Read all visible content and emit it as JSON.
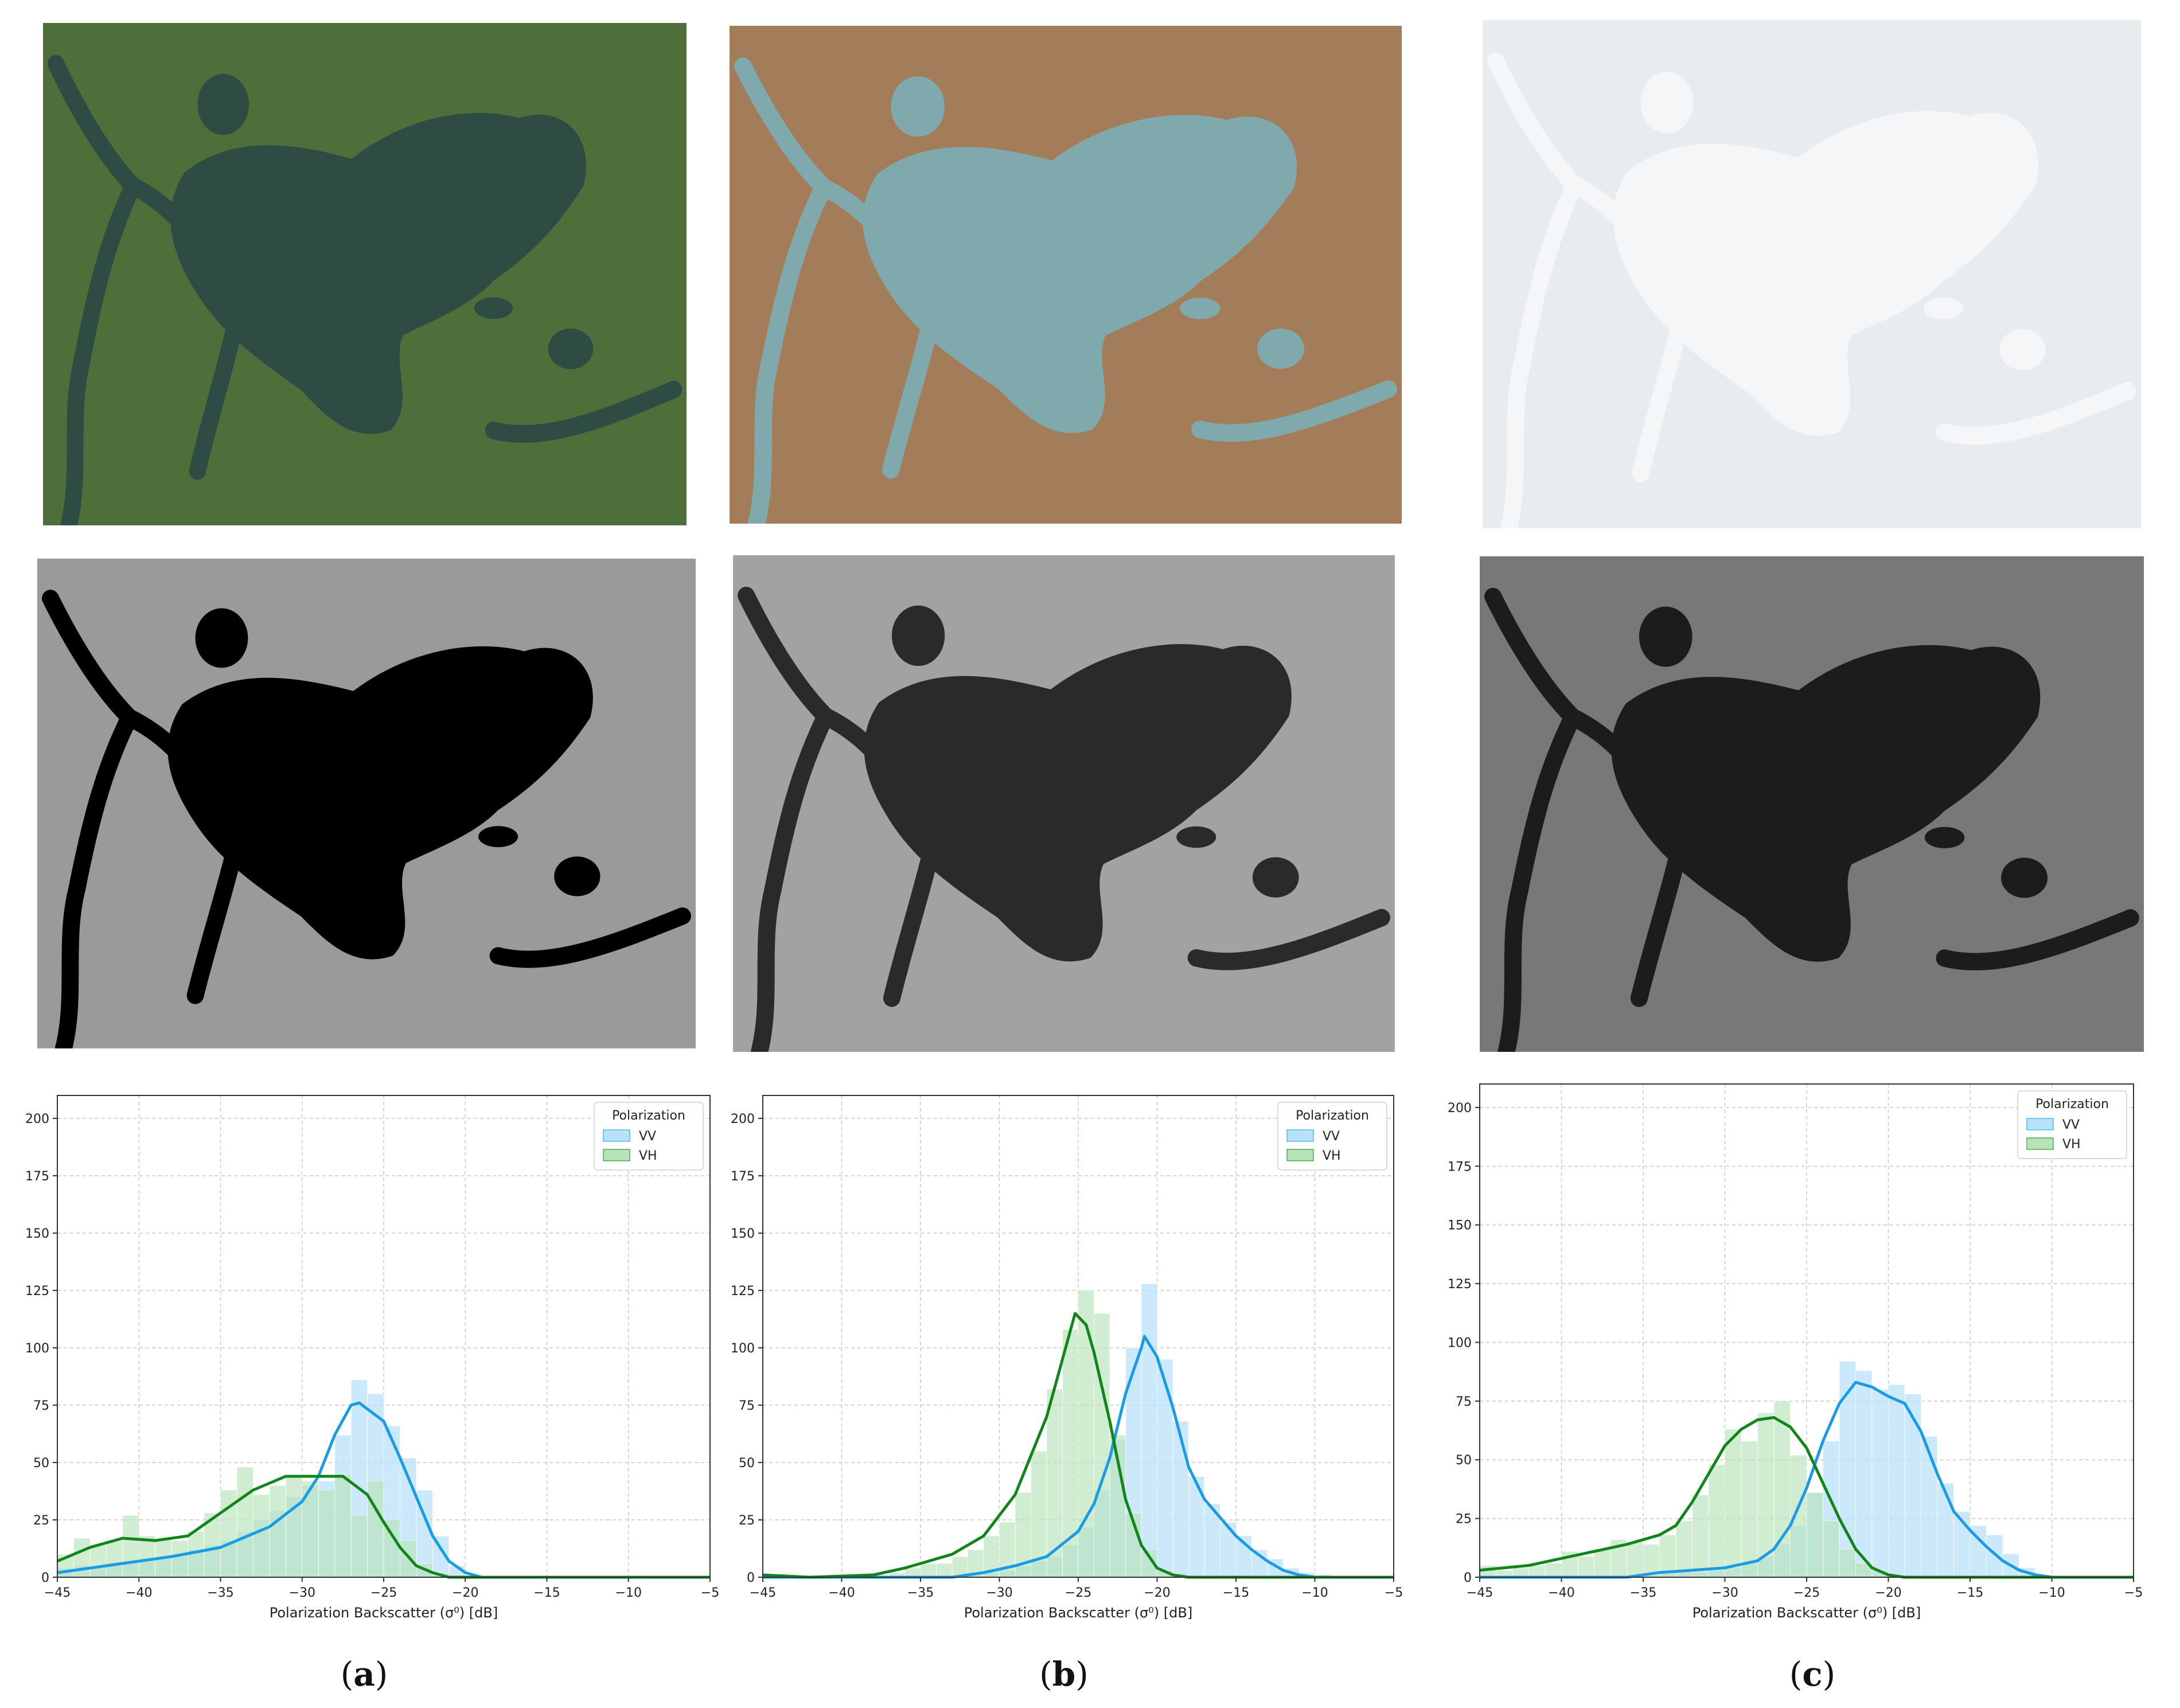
{
  "captions": [
    {
      "open": "(",
      "letter": "a",
      "close": ")"
    },
    {
      "open": "(",
      "letter": "b",
      "close": ")"
    },
    {
      "open": "(",
      "letter": "c",
      "close": ")"
    }
  ],
  "images": {
    "optical": [
      {
        "scene": "summer",
        "land": "#4f6f3a",
        "water": "#2e4c43"
      },
      {
        "scene": "autumn",
        "land": "#a37d5a",
        "water": "#7fa9ad"
      },
      {
        "scene": "winter-snow",
        "land": "#e8ecef",
        "water": "#f4f6f8"
      }
    ],
    "sar": [
      {
        "scene": "open-water",
        "land": "#9a9a9a",
        "water": "#000000"
      },
      {
        "scene": "thin-ice",
        "land": "#a2a2a2",
        "water": "#2a2a2a"
      },
      {
        "scene": "ice",
        "land": "#787878",
        "water": "#1c1c1c"
      }
    ]
  },
  "colors": {
    "vv": "#1a9be6",
    "vh": "#11851a",
    "vv_fill": "#b8e1fa",
    "vh_fill": "#b7e3b7"
  },
  "chart_data": [
    {
      "type": "histogram",
      "xlabel": "Polarization Backscatter (σ⁰) [dB]",
      "ylabel": "",
      "xlim": [
        -45,
        -5
      ],
      "ylim": [
        0,
        210
      ],
      "xticks": [
        -45,
        -40,
        -35,
        -30,
        -25,
        -20,
        -15,
        -10,
        -5
      ],
      "yticks": [
        0,
        25,
        50,
        75,
        100,
        125,
        150,
        175,
        200
      ],
      "grid": true,
      "legend": {
        "title": "Polarization",
        "placement": "top-right"
      },
      "series": [
        {
          "name": "VV",
          "bins": [
            -45,
            -44,
            -43,
            -42,
            -41,
            -40,
            -39,
            -38,
            -37,
            -36,
            -35,
            -34,
            -33,
            -32,
            -31,
            -30,
            -29,
            -28,
            -27,
            -26,
            -25,
            -24,
            -23,
            -22,
            -21,
            -20
          ],
          "counts": [
            4,
            5,
            5,
            6,
            7,
            8,
            9,
            10,
            12,
            14,
            16,
            20,
            25,
            29,
            35,
            40,
            42,
            62,
            86,
            80,
            66,
            52,
            38,
            18,
            5,
            1
          ],
          "kde": [
            [
              -45,
              2
            ],
            [
              -42,
              5
            ],
            [
              -38,
              9
            ],
            [
              -35,
              13
            ],
            [
              -32,
              22
            ],
            [
              -30,
              33
            ],
            [
              -29,
              44
            ],
            [
              -28,
              62
            ],
            [
              -27,
              75
            ],
            [
              -26.5,
              76
            ],
            [
              -25,
              68
            ],
            [
              -24,
              52
            ],
            [
              -23,
              35
            ],
            [
              -22,
              18
            ],
            [
              -21,
              7
            ],
            [
              -20,
              2
            ],
            [
              -19,
              0
            ],
            [
              -5,
              0
            ]
          ]
        },
        {
          "name": "VH",
          "bins": [
            -45,
            -44,
            -43,
            -42,
            -41,
            -40,
            -39,
            -38,
            -37,
            -36,
            -35,
            -34,
            -33,
            -32,
            -31,
            -30,
            -29,
            -28,
            -27,
            -26,
            -25,
            -24,
            -23,
            -22,
            -21
          ],
          "counts": [
            10,
            17,
            14,
            16,
            27,
            18,
            17,
            16,
            20,
            28,
            38,
            48,
            36,
            40,
            44,
            42,
            38,
            45,
            27,
            42,
            25,
            16,
            6,
            2,
            1
          ],
          "kde": [
            [
              -45,
              7
            ],
            [
              -43,
              13
            ],
            [
              -41,
              17
            ],
            [
              -39,
              16
            ],
            [
              -37,
              18
            ],
            [
              -35,
              28
            ],
            [
              -33,
              38
            ],
            [
              -31,
              44
            ],
            [
              -29,
              44
            ],
            [
              -27.5,
              44
            ],
            [
              -26,
              36
            ],
            [
              -25,
              24
            ],
            [
              -24,
              13
            ],
            [
              -23,
              5
            ],
            [
              -22,
              2
            ],
            [
              -21,
              0
            ],
            [
              -5,
              0
            ]
          ]
        }
      ]
    },
    {
      "type": "histogram",
      "xlabel": "Polarization Backscatter (σ⁰) [dB]",
      "ylabel": "",
      "xlim": [
        -45,
        -5
      ],
      "ylim": [
        0,
        210
      ],
      "xticks": [
        -45,
        -40,
        -35,
        -30,
        -25,
        -20,
        -15,
        -10,
        -5
      ],
      "yticks": [
        0,
        25,
        50,
        75,
        100,
        125,
        150,
        175,
        200
      ],
      "grid": true,
      "legend": {
        "title": "Polarization",
        "placement": "top-right"
      },
      "series": [
        {
          "name": "VV",
          "bins": [
            -32,
            -31,
            -30,
            -29,
            -28,
            -27,
            -26,
            -25,
            -24,
            -23,
            -22,
            -21,
            -20,
            -19,
            -18,
            -17,
            -16,
            -15,
            -14,
            -13,
            -12,
            -11,
            -10
          ],
          "counts": [
            1,
            2,
            3,
            5,
            7,
            9,
            14,
            22,
            38,
            60,
            100,
            128,
            95,
            68,
            44,
            32,
            24,
            18,
            12,
            8,
            4,
            2,
            1
          ],
          "kde": [
            [
              -45,
              0
            ],
            [
              -33,
              0
            ],
            [
              -31,
              2
            ],
            [
              -29,
              5
            ],
            [
              -27,
              9
            ],
            [
              -25,
              20
            ],
            [
              -24,
              32
            ],
            [
              -23,
              52
            ],
            [
              -22,
              80
            ],
            [
              -21,
              100
            ],
            [
              -20.8,
              105
            ],
            [
              -20,
              96
            ],
            [
              -19,
              74
            ],
            [
              -18,
              48
            ],
            [
              -17,
              34
            ],
            [
              -16,
              26
            ],
            [
              -15,
              18
            ],
            [
              -14,
              12
            ],
            [
              -13,
              7
            ],
            [
              -12,
              3
            ],
            [
              -11,
              1
            ],
            [
              -10,
              0
            ],
            [
              -5,
              0
            ]
          ]
        },
        {
          "name": "VH",
          "bins": [
            -45,
            -44,
            -43,
            -42,
            -41,
            -40,
            -39,
            -38,
            -37,
            -36,
            -35,
            -34,
            -33,
            -32,
            -31,
            -30,
            -29,
            -28,
            -27,
            -26,
            -25,
            -24,
            -23,
            -22,
            -21,
            -20
          ],
          "counts": [
            1,
            1,
            0,
            0,
            0,
            0,
            1,
            1,
            2,
            4,
            6,
            6,
            9,
            12,
            18,
            24,
            37,
            55,
            82,
            108,
            125,
            115,
            62,
            28,
            12,
            3
          ],
          "kde": [
            [
              -45,
              1
            ],
            [
              -42,
              0
            ],
            [
              -38,
              1
            ],
            [
              -36,
              4
            ],
            [
              -35,
              6
            ],
            [
              -33,
              10
            ],
            [
              -31,
              18
            ],
            [
              -29,
              36
            ],
            [
              -27,
              70
            ],
            [
              -26,
              95
            ],
            [
              -25.2,
              115
            ],
            [
              -24.5,
              110
            ],
            [
              -24,
              98
            ],
            [
              -23,
              68
            ],
            [
              -22,
              34
            ],
            [
              -21,
              14
            ],
            [
              -20,
              4
            ],
            [
              -19,
              1
            ],
            [
              -18,
              0
            ],
            [
              -5,
              0
            ]
          ]
        }
      ]
    },
    {
      "type": "histogram",
      "xlabel": "Polarization Backscatter (σ⁰) [dB]",
      "ylabel": "",
      "xlim": [
        -45,
        -5
      ],
      "ylim": [
        0,
        210
      ],
      "xticks": [
        -45,
        -40,
        -35,
        -30,
        -25,
        -20,
        -15,
        -10,
        -5
      ],
      "yticks": [
        0,
        25,
        50,
        75,
        100,
        125,
        150,
        175,
        200
      ],
      "grid": true,
      "legend": {
        "title": "Polarization",
        "placement": "top-right"
      },
      "series": [
        {
          "name": "VV",
          "bins": [
            -35,
            -34,
            -33,
            -32,
            -31,
            -30,
            -29,
            -28,
            -27,
            -26,
            -25,
            -24,
            -23,
            -22,
            -21,
            -20,
            -19,
            -18,
            -17,
            -16,
            -15,
            -14,
            -13,
            -12,
            -11
          ],
          "counts": [
            1,
            2,
            3,
            2,
            3,
            4,
            6,
            9,
            14,
            22,
            36,
            58,
            92,
            88,
            80,
            82,
            78,
            60,
            40,
            28,
            22,
            18,
            10,
            4,
            1
          ],
          "kde": [
            [
              -45,
              0
            ],
            [
              -36,
              0
            ],
            [
              -34,
              2
            ],
            [
              -32,
              3
            ],
            [
              -30,
              4
            ],
            [
              -28,
              7
            ],
            [
              -27,
              12
            ],
            [
              -26,
              22
            ],
            [
              -25,
              38
            ],
            [
              -24,
              58
            ],
            [
              -23,
              74
            ],
            [
              -22,
              83
            ],
            [
              -21,
              81
            ],
            [
              -20,
              77
            ],
            [
              -19,
              74
            ],
            [
              -18,
              62
            ],
            [
              -17,
              44
            ],
            [
              -16,
              28
            ],
            [
              -15,
              20
            ],
            [
              -14,
              13
            ],
            [
              -13,
              7
            ],
            [
              -12,
              3
            ],
            [
              -11,
              1
            ],
            [
              -10,
              0
            ],
            [
              -5,
              0
            ]
          ]
        },
        {
          "name": "VH",
          "bins": [
            -45,
            -44,
            -43,
            -42,
            -41,
            -40,
            -39,
            -38,
            -37,
            -36,
            -35,
            -34,
            -33,
            -32,
            -31,
            -30,
            -29,
            -28,
            -27,
            -26,
            -25,
            -24,
            -23,
            -22,
            -21,
            -20
          ],
          "counts": [
            5,
            3,
            4,
            5,
            6,
            11,
            9,
            12,
            16,
            15,
            14,
            18,
            24,
            35,
            48,
            63,
            58,
            70,
            75,
            52,
            36,
            24,
            12,
            6,
            3,
            1
          ],
          "kde": [
            [
              -45,
              3
            ],
            [
              -42,
              5
            ],
            [
              -40,
              8
            ],
            [
              -38,
              11
            ],
            [
              -36,
              14
            ],
            [
              -34,
              18
            ],
            [
              -33,
              22
            ],
            [
              -32,
              32
            ],
            [
              -31,
              44
            ],
            [
              -30,
              56
            ],
            [
              -29,
              63
            ],
            [
              -28,
              67
            ],
            [
              -27,
              68
            ],
            [
              -26,
              64
            ],
            [
              -25,
              55
            ],
            [
              -24,
              40
            ],
            [
              -23,
              25
            ],
            [
              -22,
              12
            ],
            [
              -21,
              4
            ],
            [
              -20,
              1
            ],
            [
              -19,
              0
            ],
            [
              -5,
              0
            ]
          ]
        }
      ]
    }
  ]
}
